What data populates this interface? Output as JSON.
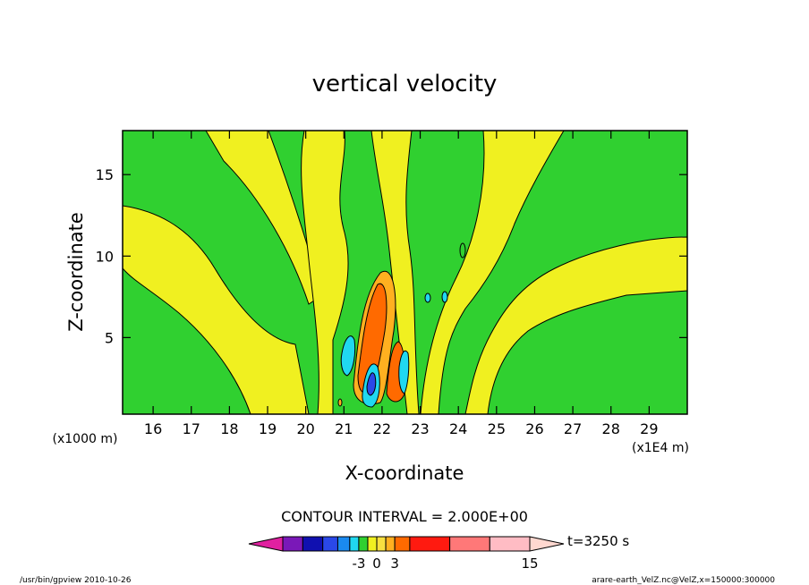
{
  "chart_data": {
    "type": "heatmap",
    "title": "vertical velocity",
    "xlabel": "X-coordinate",
    "ylabel": "Z-coordinate",
    "x_unit_note": "(x1E4 m)",
    "y_unit_note": "(x1000 m)",
    "xlim": [
      15.2,
      30.0
    ],
    "ylim": [
      0.3,
      17.7
    ],
    "x_ticks": [
      "16",
      "17",
      "18",
      "19",
      "20",
      "21",
      "22",
      "23",
      "24",
      "25",
      "26",
      "27",
      "28",
      "29"
    ],
    "y_ticks": [
      "5",
      "10",
      "15"
    ],
    "contour_interval_label": "CONTOUR INTERVAL = 2.000E+00",
    "colorbar": {
      "tick_labels": [
        "-3",
        "0",
        "3",
        "15"
      ],
      "time_label": "t=3250 s",
      "colors": [
        "#e020a0",
        "#7a18b8",
        "#1010b0",
        "#2a48e8",
        "#1a8af0",
        "#20d8f0",
        "#30d030",
        "#f0f020",
        "#f8e040",
        "#ffb020",
        "#ff6a00",
        "#ff1a10",
        "#ff7878",
        "#ffbcc4",
        "#ffd8d0"
      ]
    },
    "field_colors": {
      "neg_moderate": "#20d8f0",
      "neg_strong": "#2a48e8",
      "near_zero": "#30d030",
      "pos_weak": "#f0f020",
      "pos_low": "#f8e040",
      "pos_mid": "#ffb020",
      "pos_high": "#ff6a00",
      "contour_line": "#000000"
    },
    "grid": false
  },
  "footer": {
    "left": "/usr/bin/gpview   2010-10-26",
    "right": "arare-earth_VelZ.nc@VelZ,x=150000:300000"
  }
}
